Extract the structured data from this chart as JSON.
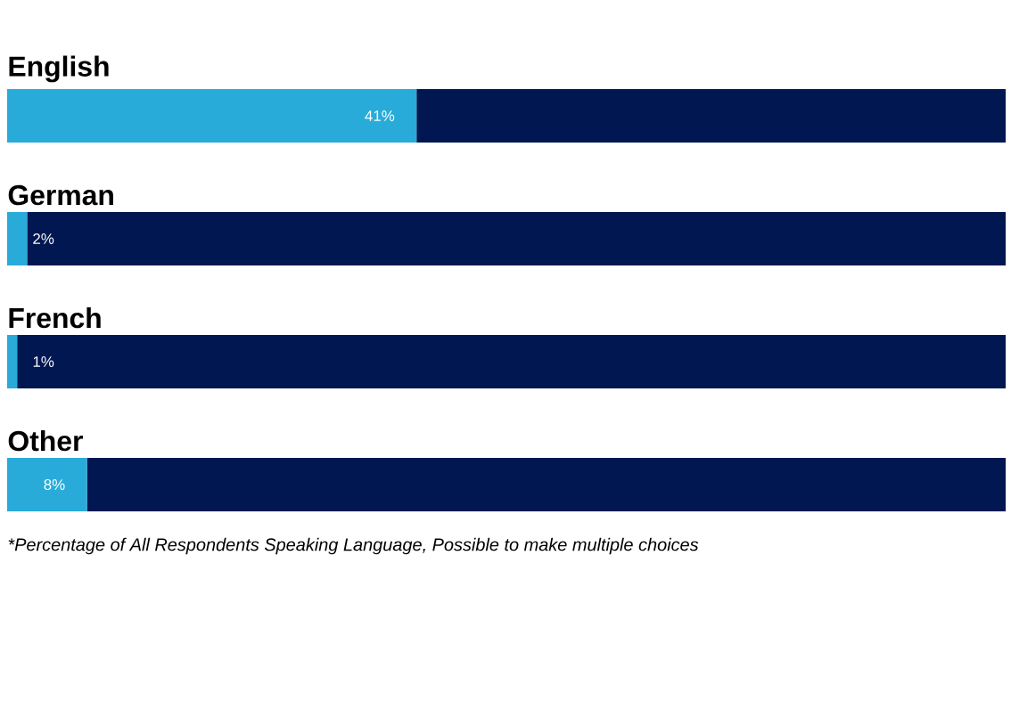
{
  "chart_data": {
    "type": "bar",
    "orientation": "horizontal",
    "stacked": true,
    "tick_labels": false,
    "categories": [
      "English",
      "German",
      "French",
      "Other"
    ],
    "series": [
      {
        "color": "#29abd9",
        "values": [
          41,
          2,
          1,
          8
        ],
        "value_labels": [
          "41%",
          "2%",
          "1%",
          "8%"
        ]
      },
      {
        "color": "#001752",
        "values": [
          59,
          98,
          99,
          92
        ]
      }
    ],
    "annotations": [
      "*Percentage of All Respondents Speaking Language, Possible to make multiple choices"
    ]
  }
}
